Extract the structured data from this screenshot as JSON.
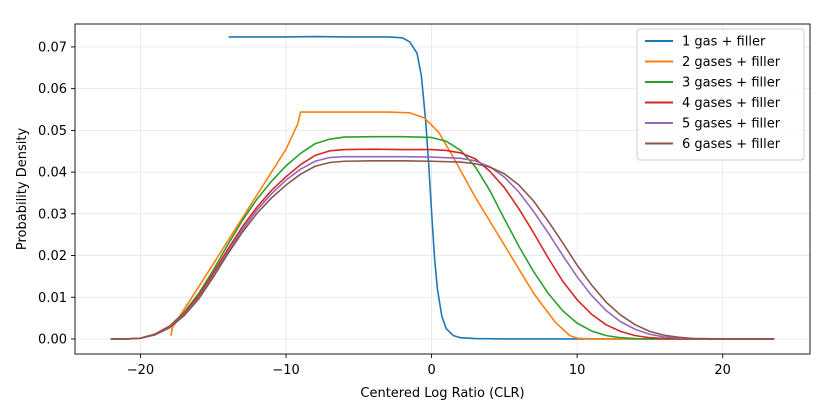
{
  "chart_data": {
    "type": "line",
    "title": "",
    "xlabel": "Centered Log Ratio (CLR)",
    "ylabel": "Probability Density",
    "xlim": [
      -24.5,
      26.0
    ],
    "ylim": [
      -0.0036,
      0.0755
    ],
    "xticks": [
      -20,
      -10,
      0,
      10,
      20
    ],
    "yticks": [
      0.0,
      0.01,
      0.02,
      0.03,
      0.04,
      0.05,
      0.06,
      0.07
    ],
    "xtick_labels": [
      "−20",
      "−10",
      "0",
      "10",
      "20"
    ],
    "ytick_labels": [
      "0.00",
      "0.01",
      "0.02",
      "0.03",
      "0.04",
      "0.05",
      "0.06",
      "0.07"
    ],
    "grid": true,
    "legend_position": "upper-right",
    "series": [
      {
        "name": "1 gas + filler",
        "color": "#1f77b4",
        "x": [
          -13.9,
          -12,
          -10,
          -8,
          -6,
          -4,
          -3,
          -2,
          -1.5,
          -1.0,
          -0.7,
          -0.4,
          -0.2,
          0,
          0.2,
          0.4,
          0.7,
          1.0,
          1.5,
          2.0,
          3.0,
          5,
          8,
          12,
          16,
          20,
          23.5
        ],
        "y": [
          0.0724,
          0.0724,
          0.0724,
          0.0725,
          0.0724,
          0.0724,
          0.0724,
          0.0722,
          0.0712,
          0.0685,
          0.063,
          0.052,
          0.042,
          0.0305,
          0.0195,
          0.012,
          0.0055,
          0.0025,
          0.0008,
          0.0003,
          0.0001,
          0.0,
          0.0,
          0.0,
          0.0,
          0.0,
          0.0
        ]
      },
      {
        "name": "2 gases + filler",
        "color": "#ff7f0e",
        "x": [
          -17.9,
          -17.8,
          -16,
          -14,
          -12,
          -10,
          -9.2,
          -9,
          -7,
          -5,
          -3,
          -1.5,
          -0.5,
          0.5,
          1.5,
          3,
          5,
          7,
          8.5,
          9.5,
          10,
          10.5,
          11,
          12,
          14,
          18,
          23.5
        ],
        "y": [
          0.0009,
          0.0028,
          0.0125,
          0.0235,
          0.0345,
          0.0455,
          0.0515,
          0.0544,
          0.0544,
          0.0544,
          0.0544,
          0.0542,
          0.053,
          0.0495,
          0.0435,
          0.034,
          0.0225,
          0.011,
          0.004,
          0.0008,
          0.0002,
          0.0001,
          0.0,
          0.0,
          0.0,
          0.0,
          0.0
        ]
      },
      {
        "name": "3 gases + filler",
        "color": "#2ca02c",
        "x": [
          -22,
          -21,
          -20,
          -19,
          -18,
          -17,
          -16,
          -15,
          -14,
          -13,
          -12,
          -11,
          -10,
          -9,
          -8,
          -7,
          -6,
          -4,
          -2,
          -1,
          0,
          1,
          2,
          3,
          4,
          5,
          6,
          7,
          8,
          9,
          10,
          11,
          12,
          13,
          14,
          15,
          16,
          18,
          21,
          23.5
        ],
        "y": [
          0.0,
          0.0,
          0.0002,
          0.0012,
          0.0031,
          0.0064,
          0.0109,
          0.0165,
          0.0226,
          0.0284,
          0.0335,
          0.0378,
          0.0415,
          0.0445,
          0.0468,
          0.0479,
          0.0484,
          0.0485,
          0.0485,
          0.0484,
          0.0483,
          0.0474,
          0.0452,
          0.0413,
          0.0356,
          0.0288,
          0.0222,
          0.0162,
          0.011,
          0.0068,
          0.0038,
          0.0019,
          0.0008,
          0.0003,
          0.0001,
          0.0,
          0.0,
          0.0,
          0.0,
          0.0
        ]
      },
      {
        "name": "4 gases + filler",
        "color": "#d62728",
        "x": [
          -22,
          -21,
          -20,
          -19,
          -18,
          -17,
          -16,
          -15,
          -14,
          -13,
          -12,
          -11,
          -10,
          -9,
          -8,
          -7,
          -6,
          -4,
          -2,
          0,
          1,
          2,
          3,
          4,
          5,
          6,
          7,
          8,
          9,
          10,
          11,
          12,
          13,
          14,
          15,
          16,
          17,
          19,
          23.5
        ],
        "y": [
          0.0,
          0.0,
          0.0002,
          0.0011,
          0.003,
          0.0061,
          0.0104,
          0.0158,
          0.0215,
          0.0269,
          0.0316,
          0.0356,
          0.0389,
          0.0418,
          0.044,
          0.0451,
          0.0454,
          0.0455,
          0.0454,
          0.0454,
          0.0452,
          0.0446,
          0.0432,
          0.0402,
          0.0363,
          0.0312,
          0.0255,
          0.0195,
          0.0139,
          0.0094,
          0.0059,
          0.0034,
          0.0018,
          0.0008,
          0.0003,
          0.0001,
          0.0,
          0.0,
          0.0
        ]
      },
      {
        "name": "5 gases + filler",
        "color": "#9467bd",
        "x": [
          -22,
          -21,
          -20,
          -19,
          -18,
          -17,
          -16,
          -15,
          -14,
          -13,
          -12,
          -11,
          -10,
          -9,
          -8,
          -7,
          -6,
          -4,
          -2,
          0,
          2,
          3,
          4,
          5,
          6,
          7,
          8,
          9,
          10,
          11,
          12,
          13,
          14,
          15,
          16,
          17,
          18,
          20,
          23.5
        ],
        "y": [
          0.0,
          0.0,
          0.0002,
          0.001,
          0.0028,
          0.0058,
          0.0099,
          0.0152,
          0.0208,
          0.0262,
          0.0309,
          0.0348,
          0.0381,
          0.0407,
          0.0426,
          0.0435,
          0.0437,
          0.0437,
          0.0437,
          0.0436,
          0.0433,
          0.0427,
          0.0413,
          0.0388,
          0.0352,
          0.0306,
          0.0255,
          0.0201,
          0.0149,
          0.0104,
          0.0068,
          0.0041,
          0.0023,
          0.0011,
          0.0005,
          0.0002,
          0.0001,
          0.0,
          0.0
        ]
      },
      {
        "name": "6 gases + filler",
        "color": "#8c564b",
        "x": [
          -22,
          -21,
          -20,
          -19,
          -18,
          -17,
          -16,
          -15,
          -14,
          -13,
          -12,
          -11,
          -10,
          -9,
          -8,
          -7,
          -6,
          -4,
          -2,
          0,
          2,
          3,
          4,
          5,
          6,
          7,
          8,
          9,
          10,
          11,
          12,
          13,
          14,
          15,
          16,
          17,
          18,
          20,
          23.5
        ],
        "y": [
          0.0,
          0.0,
          0.0002,
          0.001,
          0.0027,
          0.0056,
          0.0096,
          0.0148,
          0.0204,
          0.0256,
          0.0301,
          0.0338,
          0.0369,
          0.0395,
          0.0414,
          0.0423,
          0.0426,
          0.0427,
          0.0427,
          0.0426,
          0.0424,
          0.042,
          0.0412,
          0.0396,
          0.0369,
          0.0331,
          0.0283,
          0.0231,
          0.0177,
          0.0129,
          0.0088,
          0.0057,
          0.0034,
          0.0018,
          0.0009,
          0.0004,
          0.0001,
          0.0,
          0.0
        ]
      }
    ]
  }
}
